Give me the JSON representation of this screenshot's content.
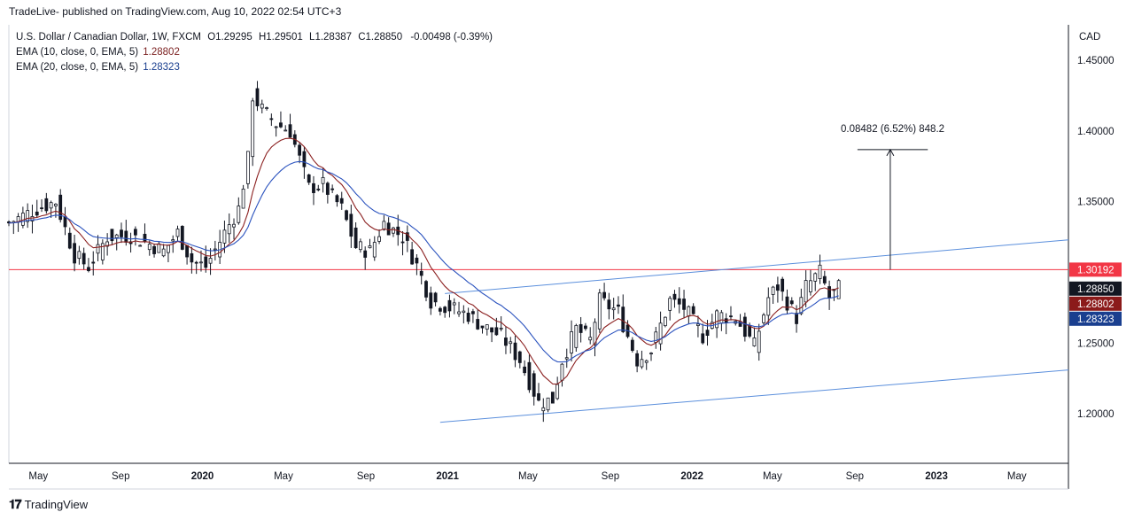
{
  "header": {
    "published": "TradeLive- published on TradingView.com, Aug 10, 2022 02:54 UTC+3"
  },
  "legend": {
    "symbol": "U.S. Dollar / Canadian Dollar, 1W, FXCM",
    "open_label": "O",
    "open": "1.29295",
    "high_label": "H",
    "high": "1.29501",
    "low_label": "L",
    "low": "1.28387",
    "close_label": "C",
    "close": "1.28850",
    "change": "-0.00498 (-0.39%)",
    "ema10_label": "EMA (10, close, 0, EMA, 5)",
    "ema10_value": "1.28802",
    "ema20_label": "EMA (20, close, 0, EMA, 5)",
    "ema20_value": "1.28323"
  },
  "footer": {
    "brand": "TradingView"
  },
  "chart_data": {
    "type": "candlestick",
    "currency": "CAD",
    "ylim": [
      1.165,
      1.475
    ],
    "y_ticks": [
      1.2,
      1.25,
      1.35,
      1.4,
      1.45
    ],
    "y_tick_labels": [
      "1.20000",
      "1.25000",
      "1.35000",
      "1.40000",
      "1.45000"
    ],
    "x_range": [
      "2019-03-18",
      "2023-07-17"
    ],
    "x_ticks": [
      {
        "date": "2019-05-01",
        "label": "May",
        "bold": false
      },
      {
        "date": "2019-09-01",
        "label": "Sep",
        "bold": false
      },
      {
        "date": "2020-01-01",
        "label": "2020",
        "bold": true
      },
      {
        "date": "2020-05-01",
        "label": "May",
        "bold": false
      },
      {
        "date": "2020-09-01",
        "label": "Sep",
        "bold": false
      },
      {
        "date": "2021-01-01",
        "label": "2021",
        "bold": true
      },
      {
        "date": "2021-05-01",
        "label": "May",
        "bold": false
      },
      {
        "date": "2021-09-01",
        "label": "Sep",
        "bold": false
      },
      {
        "date": "2022-01-01",
        "label": "2022",
        "bold": true
      },
      {
        "date": "2022-05-01",
        "label": "May",
        "bold": false
      },
      {
        "date": "2022-09-01",
        "label": "Sep",
        "bold": false
      },
      {
        "date": "2023-01-01",
        "label": "2023",
        "bold": true
      },
      {
        "date": "2023-05-01",
        "label": "May",
        "bold": false
      }
    ],
    "weekly_closes": [
      {
        "date": "2019-03-18",
        "close": 1.335
      },
      {
        "date": "2019-04-29",
        "close": 1.345
      },
      {
        "date": "2019-05-27",
        "close": 1.35
      },
      {
        "date": "2019-06-24",
        "close": 1.312
      },
      {
        "date": "2019-07-15",
        "close": 1.304
      },
      {
        "date": "2019-08-12",
        "close": 1.325
      },
      {
        "date": "2019-09-16",
        "close": 1.326
      },
      {
        "date": "2019-10-14",
        "close": 1.32
      },
      {
        "date": "2019-11-04",
        "close": 1.315
      },
      {
        "date": "2019-11-25",
        "close": 1.328
      },
      {
        "date": "2019-12-16",
        "close": 1.308
      },
      {
        "date": "2020-01-06",
        "close": 1.304
      },
      {
        "date": "2020-02-03",
        "close": 1.328
      },
      {
        "date": "2020-02-24",
        "close": 1.345
      },
      {
        "date": "2020-03-09",
        "close": 1.38
      },
      {
        "date": "2020-03-16",
        "close": 1.425
      },
      {
        "date": "2020-03-30",
        "close": 1.415
      },
      {
        "date": "2020-04-20",
        "close": 1.405
      },
      {
        "date": "2020-05-11",
        "close": 1.4
      },
      {
        "date": "2020-06-08",
        "close": 1.36
      },
      {
        "date": "2020-06-29",
        "close": 1.362
      },
      {
        "date": "2020-07-27",
        "close": 1.345
      },
      {
        "date": "2020-08-17",
        "close": 1.318
      },
      {
        "date": "2020-09-07",
        "close": 1.315
      },
      {
        "date": "2020-09-28",
        "close": 1.335
      },
      {
        "date": "2020-10-26",
        "close": 1.325
      },
      {
        "date": "2020-11-16",
        "close": 1.305
      },
      {
        "date": "2020-12-07",
        "close": 1.28
      },
      {
        "date": "2021-01-04",
        "close": 1.275
      },
      {
        "date": "2021-02-01",
        "close": 1.27
      },
      {
        "date": "2021-02-22",
        "close": 1.262
      },
      {
        "date": "2021-03-22",
        "close": 1.255
      },
      {
        "date": "2021-04-19",
        "close": 1.238
      },
      {
        "date": "2021-05-17",
        "close": 1.208
      },
      {
        "date": "2021-06-07",
        "close": 1.21
      },
      {
        "date": "2021-06-21",
        "close": 1.238
      },
      {
        "date": "2021-07-12",
        "close": 1.26
      },
      {
        "date": "2021-08-02",
        "close": 1.252
      },
      {
        "date": "2021-08-16",
        "close": 1.28
      },
      {
        "date": "2021-09-13",
        "close": 1.272
      },
      {
        "date": "2021-10-11",
        "close": 1.238
      },
      {
        "date": "2021-11-01",
        "close": 1.245
      },
      {
        "date": "2021-11-29",
        "close": 1.28
      },
      {
        "date": "2021-12-20",
        "close": 1.275
      },
      {
        "date": "2022-01-17",
        "close": 1.255
      },
      {
        "date": "2022-02-07",
        "close": 1.27
      },
      {
        "date": "2022-03-07",
        "close": 1.268
      },
      {
        "date": "2022-04-04",
        "close": 1.248
      },
      {
        "date": "2022-04-25",
        "close": 1.282
      },
      {
        "date": "2022-05-09",
        "close": 1.29
      },
      {
        "date": "2022-06-06",
        "close": 1.268
      },
      {
        "date": "2022-06-20",
        "close": 1.29
      },
      {
        "date": "2022-07-11",
        "close": 1.3
      },
      {
        "date": "2022-07-25",
        "close": 1.282
      },
      {
        "date": "2022-08-08",
        "close": 1.2885
      }
    ],
    "ema10_value": 1.28802,
    "ema20_value": 1.28323,
    "horizontal_line": {
      "value": 1.30192,
      "label": "1.30192",
      "color": "#f23645"
    },
    "trendlines": [
      {
        "name": "upper channel",
        "color": "#5b8fdc",
        "start": {
          "date": "2020-12-28",
          "value": 1.285
        },
        "end": {
          "date": "2023-07-17",
          "value": 1.323
        }
      },
      {
        "name": "lower channel",
        "color": "#5b8fdc",
        "start": {
          "date": "2020-12-21",
          "value": 1.194
        },
        "end": {
          "date": "2023-07-17",
          "value": 1.231
        }
      }
    ],
    "measure": {
      "text": "0.08482 (6.52%) 848.2",
      "from": {
        "date": "2022-10-24",
        "value": 1.30192
      },
      "to": {
        "date": "2022-10-24",
        "value": 1.38674
      },
      "cap_from_date": "2022-09-05",
      "cap_to_date": "2022-12-19"
    },
    "price_tags": [
      {
        "value": 1.30192,
        "label": "1.30192",
        "bg": "#f23645"
      },
      {
        "value": 1.2885,
        "label": "1.28850",
        "bg": "#131722"
      },
      {
        "value": 1.28802,
        "label": "1.28802",
        "bg": "#8b1a1a"
      },
      {
        "value": 1.28323,
        "label": "1.28323",
        "bg": "#1a3f8f"
      }
    ],
    "colors": {
      "up": "#131722",
      "down": "#131722",
      "ema10": "#8b2020",
      "ema20": "#2a52be",
      "grid": "#e0e3eb"
    }
  }
}
